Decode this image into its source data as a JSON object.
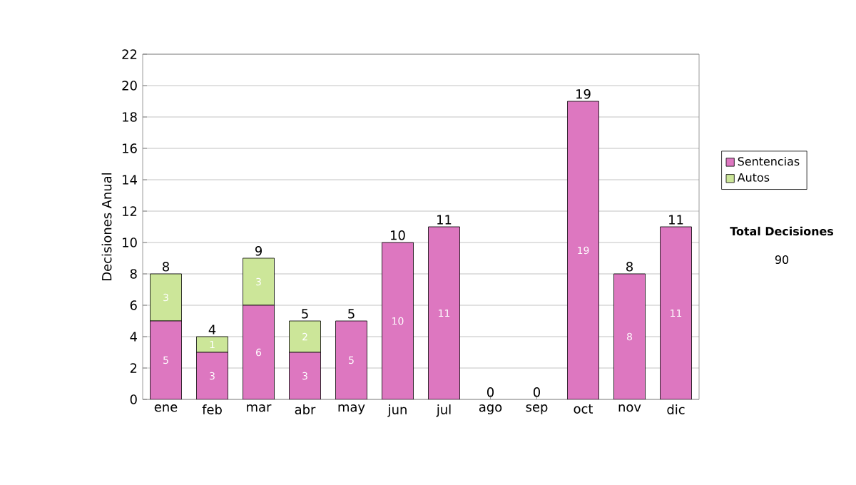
{
  "chart_data": {
    "type": "bar",
    "stacked": true,
    "ylabel": "Decisiones Anual",
    "categories": [
      "ene",
      "feb",
      "mar",
      "abr",
      "may",
      "jun",
      "jul",
      "ago",
      "sep",
      "oct",
      "nov",
      "dic"
    ],
    "series": [
      {
        "name": "Sentencias",
        "color": "#dd77c0",
        "values": [
          5,
          3,
          6,
          3,
          5,
          10,
          11,
          0,
          0,
          19,
          8,
          11
        ],
        "value_labels": [
          "5",
          "3",
          "6",
          "3",
          "5",
          "10",
          "11",
          null,
          null,
          "19",
          "8",
          "11"
        ]
      },
      {
        "name": "Autos",
        "color": "#cce699",
        "values": [
          3,
          1,
          3,
          2,
          0,
          0,
          0,
          0,
          0,
          0,
          0,
          0
        ],
        "value_labels": [
          "3",
          "1",
          "3",
          "2",
          null,
          null,
          null,
          null,
          null,
          null,
          null,
          null
        ]
      }
    ],
    "totals": [
      "8",
      "4",
      "9",
      "5",
      "5",
      "10",
      "11",
      "0",
      "0",
      "19",
      "8",
      "11"
    ],
    "ylim": [
      0,
      22
    ],
    "yticks": [
      0,
      2,
      4,
      6,
      8,
      10,
      12,
      14,
      16,
      18,
      20,
      22
    ],
    "grid": "y",
    "legend": "right",
    "annotations": [
      "Total Decisiones",
      "90"
    ]
  }
}
